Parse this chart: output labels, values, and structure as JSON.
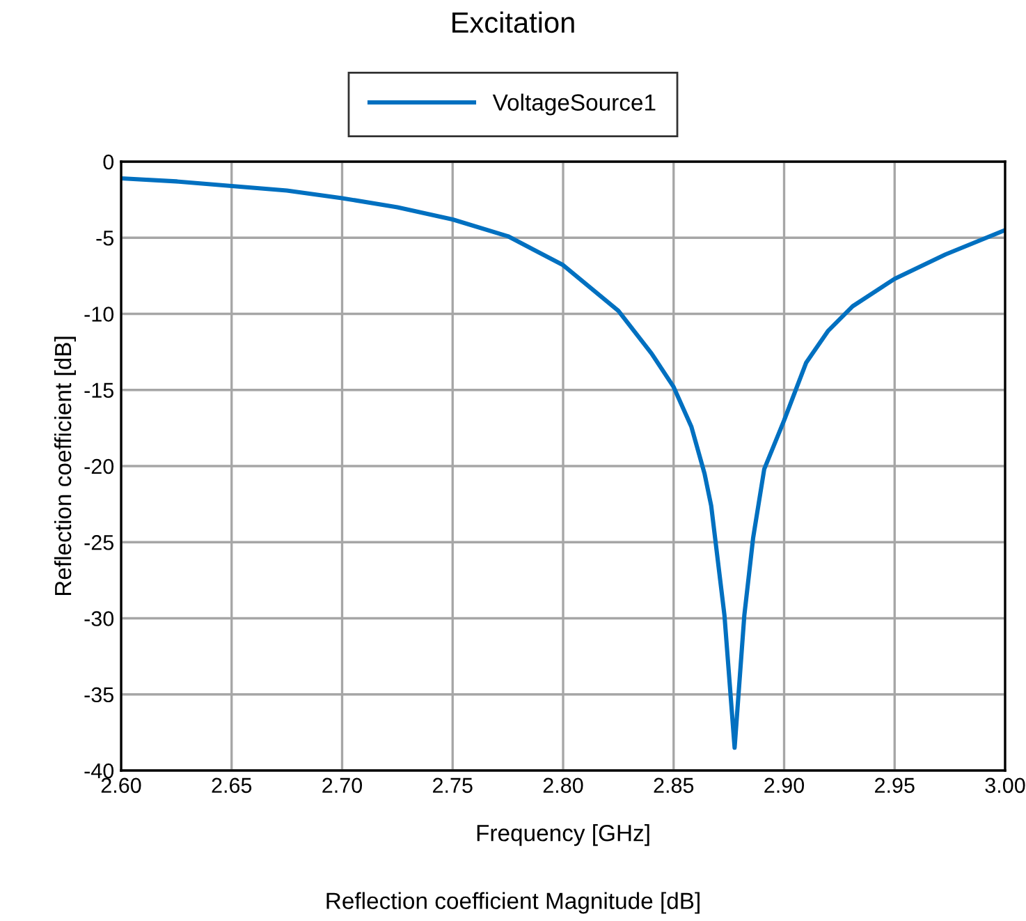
{
  "chart_data": {
    "type": "line",
    "title": "Excitation",
    "xlabel": "Frequency [GHz]",
    "ylabel": "Reflection coefficient [dB]",
    "annotations": [
      "Reflection coefficient Magnitude [dB]"
    ],
    "xlim": [
      2.6,
      3.0
    ],
    "xticks": [
      {
        "value": 2.6,
        "label": "2.60"
      },
      {
        "value": 2.65,
        "label": "2.65"
      },
      {
        "value": 2.7,
        "label": "2.70"
      },
      {
        "value": 2.75,
        "label": "2.75"
      },
      {
        "value": 2.8,
        "label": "2.80"
      },
      {
        "value": 2.85,
        "label": "2.85"
      },
      {
        "value": 2.9,
        "label": "2.90"
      },
      {
        "value": 2.95,
        "label": "2.95"
      },
      {
        "value": 3.0,
        "label": "3.00"
      }
    ],
    "ylim": [
      -40,
      0
    ],
    "yticks": [
      -40,
      -35,
      -30,
      -25,
      -20,
      -15,
      -10,
      -5,
      0
    ],
    "grid": true,
    "legend": "top",
    "marker": "none",
    "line_style": "solid",
    "series": [
      {
        "name": "VoltageSource1",
        "color": "#0070c0",
        "x": [
          2.6,
          2.625,
          2.65,
          2.675,
          2.7,
          2.725,
          2.75,
          2.775,
          2.8,
          2.825,
          2.84,
          2.85,
          2.858,
          2.864,
          2.867,
          2.873,
          2.8776,
          2.882,
          2.886,
          2.891,
          2.9,
          2.91,
          2.92,
          2.931,
          2.95,
          2.973,
          3.0
        ],
        "values": [
          -1.1,
          -1.3,
          -1.6,
          -1.9,
          -2.4,
          -3.0,
          -3.8,
          -4.9,
          -6.8,
          -9.8,
          -12.6,
          -14.8,
          -17.4,
          -20.5,
          -22.6,
          -29.8,
          -38.5,
          -29.8,
          -24.7,
          -20.2,
          -17.0,
          -13.2,
          -11.1,
          -9.5,
          -7.7,
          -6.1,
          -4.5
        ]
      }
    ]
  }
}
